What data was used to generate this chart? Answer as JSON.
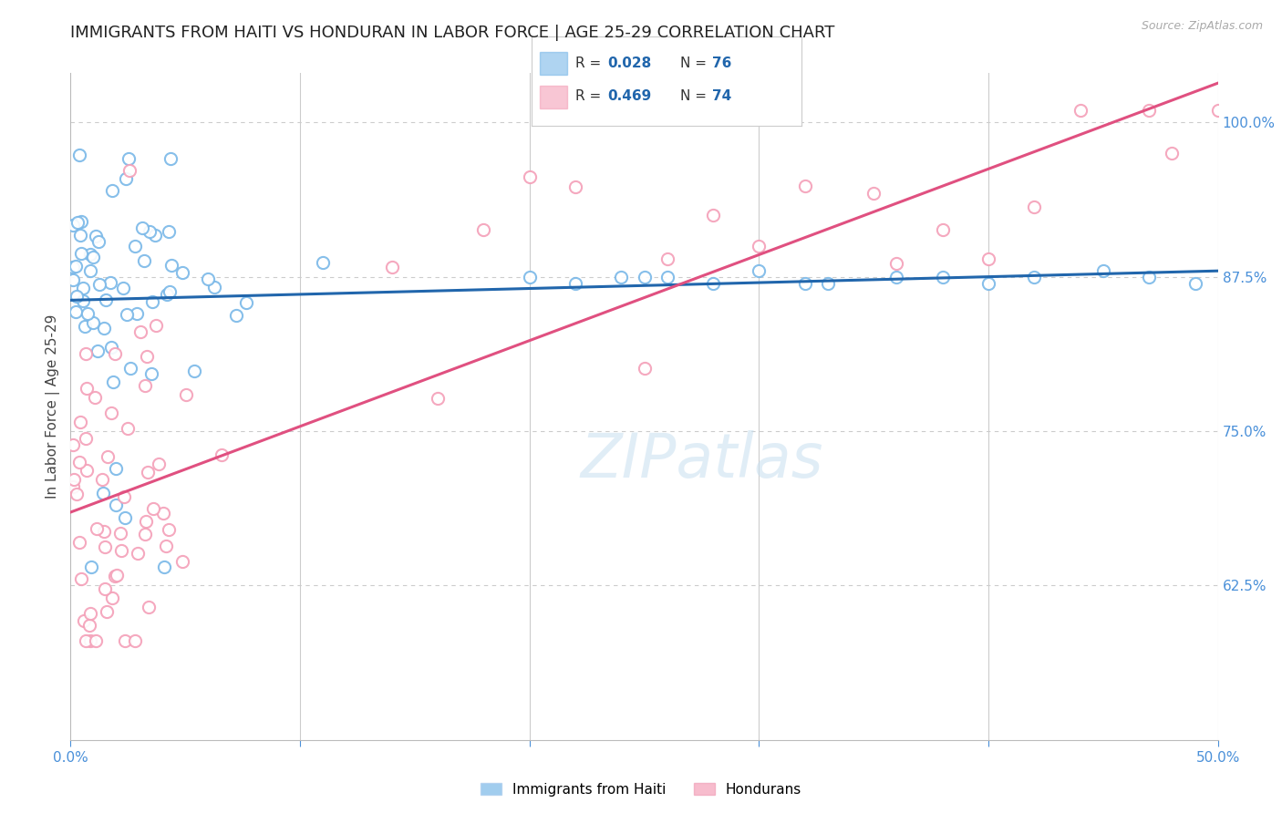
{
  "title": "IMMIGRANTS FROM HAITI VS HONDURAN IN LABOR FORCE | AGE 25-29 CORRELATION CHART",
  "source": "Source: ZipAtlas.com",
  "ylabel": "In Labor Force | Age 25-29",
  "x_min": 0.0,
  "x_max": 0.5,
  "y_min": 0.5,
  "y_max": 1.04,
  "x_ticks": [
    0.0,
    0.1,
    0.2,
    0.3,
    0.4,
    0.5
  ],
  "x_tick_labels": [
    "0.0%",
    "",
    "",
    "",
    "",
    "50.0%"
  ],
  "y_ticks": [
    0.625,
    0.75,
    0.875,
    1.0
  ],
  "y_tick_labels": [
    "62.5%",
    "75.0%",
    "87.5%",
    "100.0%"
  ],
  "haiti_color": "#7ab8e8",
  "honduran_color": "#f4a0b8",
  "haiti_edge_color": "#5a9fd4",
  "honduran_edge_color": "#f080a0",
  "haiti_line_color": "#2166ac",
  "honduran_line_color": "#e05080",
  "haiti_R": "0.028",
  "haiti_N": "76",
  "honduran_R": "0.469",
  "honduran_N": "74",
  "legend_text_color": "#333333",
  "legend_value_color": "#2166ac",
  "background_color": "#ffffff",
  "grid_color": "#cccccc",
  "tick_color": "#4a90d9",
  "title_fontsize": 13,
  "label_fontsize": 11,
  "tick_fontsize": 11,
  "scatter_size": 90,
  "scatter_lw": 1.5,
  "watermark_text": "ZIPatlas",
  "watermark_color": "#c8dff0",
  "bottom_legend_labels": [
    "Immigrants from Haiti",
    "Hondurans"
  ]
}
